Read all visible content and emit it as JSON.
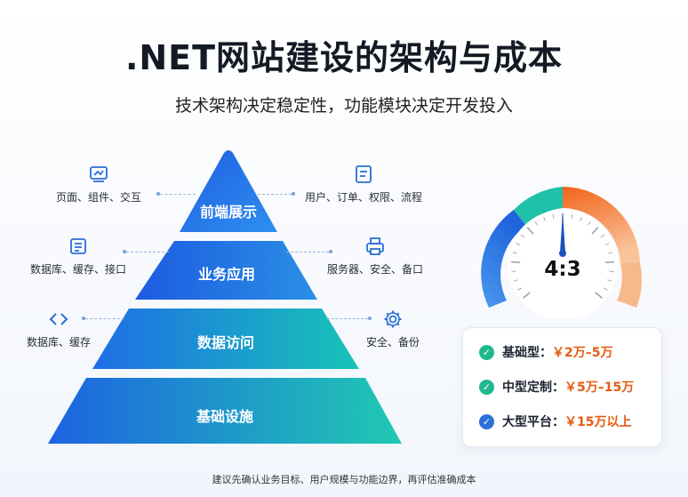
{
  "header": {
    "title": ".NET网站建设的架构与成本",
    "subtitle": "技术架构决定稳定性，功能模块决定开发投入"
  },
  "pyramid": {
    "tiers": [
      {
        "label": "前端展示"
      },
      {
        "label": "业务应用"
      },
      {
        "label": "数据访问"
      },
      {
        "label": "基础设施"
      }
    ],
    "left_items": [
      {
        "text": "页面、组件、交互",
        "icon": "layout-icon"
      },
      {
        "text": "数据库、缓存、接口",
        "icon": "database-list-icon"
      },
      {
        "text": "数据库、缓存",
        "icon": "code-tag-icon"
      }
    ],
    "right_items": [
      {
        "text": "用户、订单、权限、流程",
        "icon": "document-icon"
      },
      {
        "text": "服务器、安全、备口",
        "icon": "printer-server-icon"
      },
      {
        "text": "安全、备份",
        "icon": "gear-icon"
      }
    ]
  },
  "gauge": {
    "ratio_text": "4:3",
    "segment_colors": [
      "#2f7de1",
      "#1fc2a8",
      "#f06b1b",
      "#f7b88a"
    ]
  },
  "costs": [
    {
      "label": "基础型：",
      "value": "￥2万–5万",
      "check_color": "#1fb88f"
    },
    {
      "label": "中型定制：",
      "value": "￥5万–15万",
      "check_color": "#1fb88f"
    },
    {
      "label": "大型平台：",
      "value": "￥15万以上",
      "check_color": "#2a6fd6"
    }
  ],
  "footer": {
    "note": "建议先确认业务目标、用户规模与功能边界，再评估准确成本"
  },
  "colors": {
    "accent_blue": "#2f7de1",
    "accent_teal": "#1fc2a8",
    "accent_orange": "#e65a10"
  }
}
